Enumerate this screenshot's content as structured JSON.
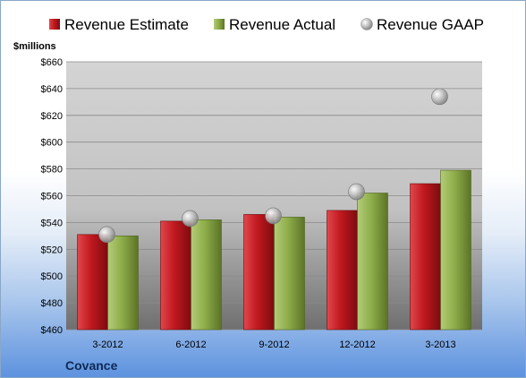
{
  "chart_data": {
    "type": "bar",
    "title": "",
    "ylabel": "$millions",
    "xlabel": "",
    "company": "Covance",
    "categories": [
      "3-2012",
      "6-2012",
      "9-2012",
      "12-2012",
      "3-2013"
    ],
    "ylim": [
      460,
      660
    ],
    "ytick_step": 20,
    "ytick_prefix": "$",
    "grid": true,
    "legend_position": "top",
    "series": [
      {
        "name": "Revenue Estimate",
        "kind": "bar",
        "color": "#c0181e",
        "values": [
          531,
          541,
          546,
          549,
          569
        ]
      },
      {
        "name": "Revenue Actual",
        "kind": "bar",
        "color": "#8fae4a",
        "values": [
          530,
          542,
          544,
          562,
          579
        ]
      },
      {
        "name": "Revenue GAAP",
        "kind": "marker",
        "color": "#b8b8b8",
        "values": [
          531,
          543,
          545,
          563,
          634
        ]
      }
    ]
  }
}
